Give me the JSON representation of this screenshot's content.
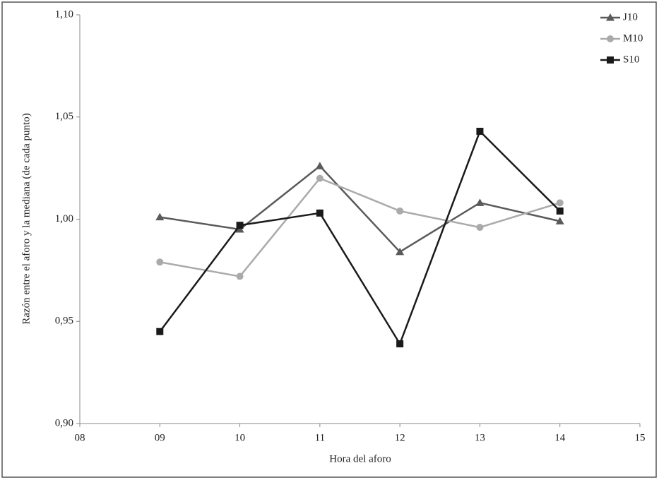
{
  "chart_data": {
    "type": "line",
    "xlabel": "Hora del aforo",
    "ylabel": "Razón entre el aforo y la mediana (de cada punto)",
    "x": [
      9,
      10,
      11,
      12,
      13,
      14
    ],
    "series": [
      {
        "name": "J10",
        "color": "#5a5a5a",
        "marker": "triangle",
        "values": [
          1.001,
          0.995,
          1.026,
          0.984,
          1.008,
          0.999
        ]
      },
      {
        "name": "M10",
        "color": "#aaaaaa",
        "marker": "circle",
        "values": [
          0.979,
          0.972,
          1.02,
          1.004,
          0.996,
          1.008
        ]
      },
      {
        "name": "S10",
        "color": "#1a1a1a",
        "marker": "square",
        "values": [
          0.945,
          0.997,
          1.003,
          0.939,
          1.043,
          1.004
        ]
      }
    ],
    "xlim": [
      8,
      15
    ],
    "xticks": [
      {
        "value": 8,
        "label": "08"
      },
      {
        "value": 9,
        "label": "09"
      },
      {
        "value": 10,
        "label": "10"
      },
      {
        "value": 11,
        "label": "11"
      },
      {
        "value": 12,
        "label": "12"
      },
      {
        "value": 13,
        "label": "13"
      },
      {
        "value": 14,
        "label": "14"
      },
      {
        "value": 15,
        "label": "15"
      }
    ],
    "ylim": [
      0.9,
      1.1
    ],
    "yticks": [
      {
        "value": 0.9,
        "label": "0,90"
      },
      {
        "value": 0.95,
        "label": "0,95"
      },
      {
        "value": 1.0,
        "label": "1,00"
      },
      {
        "value": 1.05,
        "label": "1,05"
      },
      {
        "value": 1.1,
        "label": "1,10"
      }
    ],
    "legend": "upper right"
  }
}
